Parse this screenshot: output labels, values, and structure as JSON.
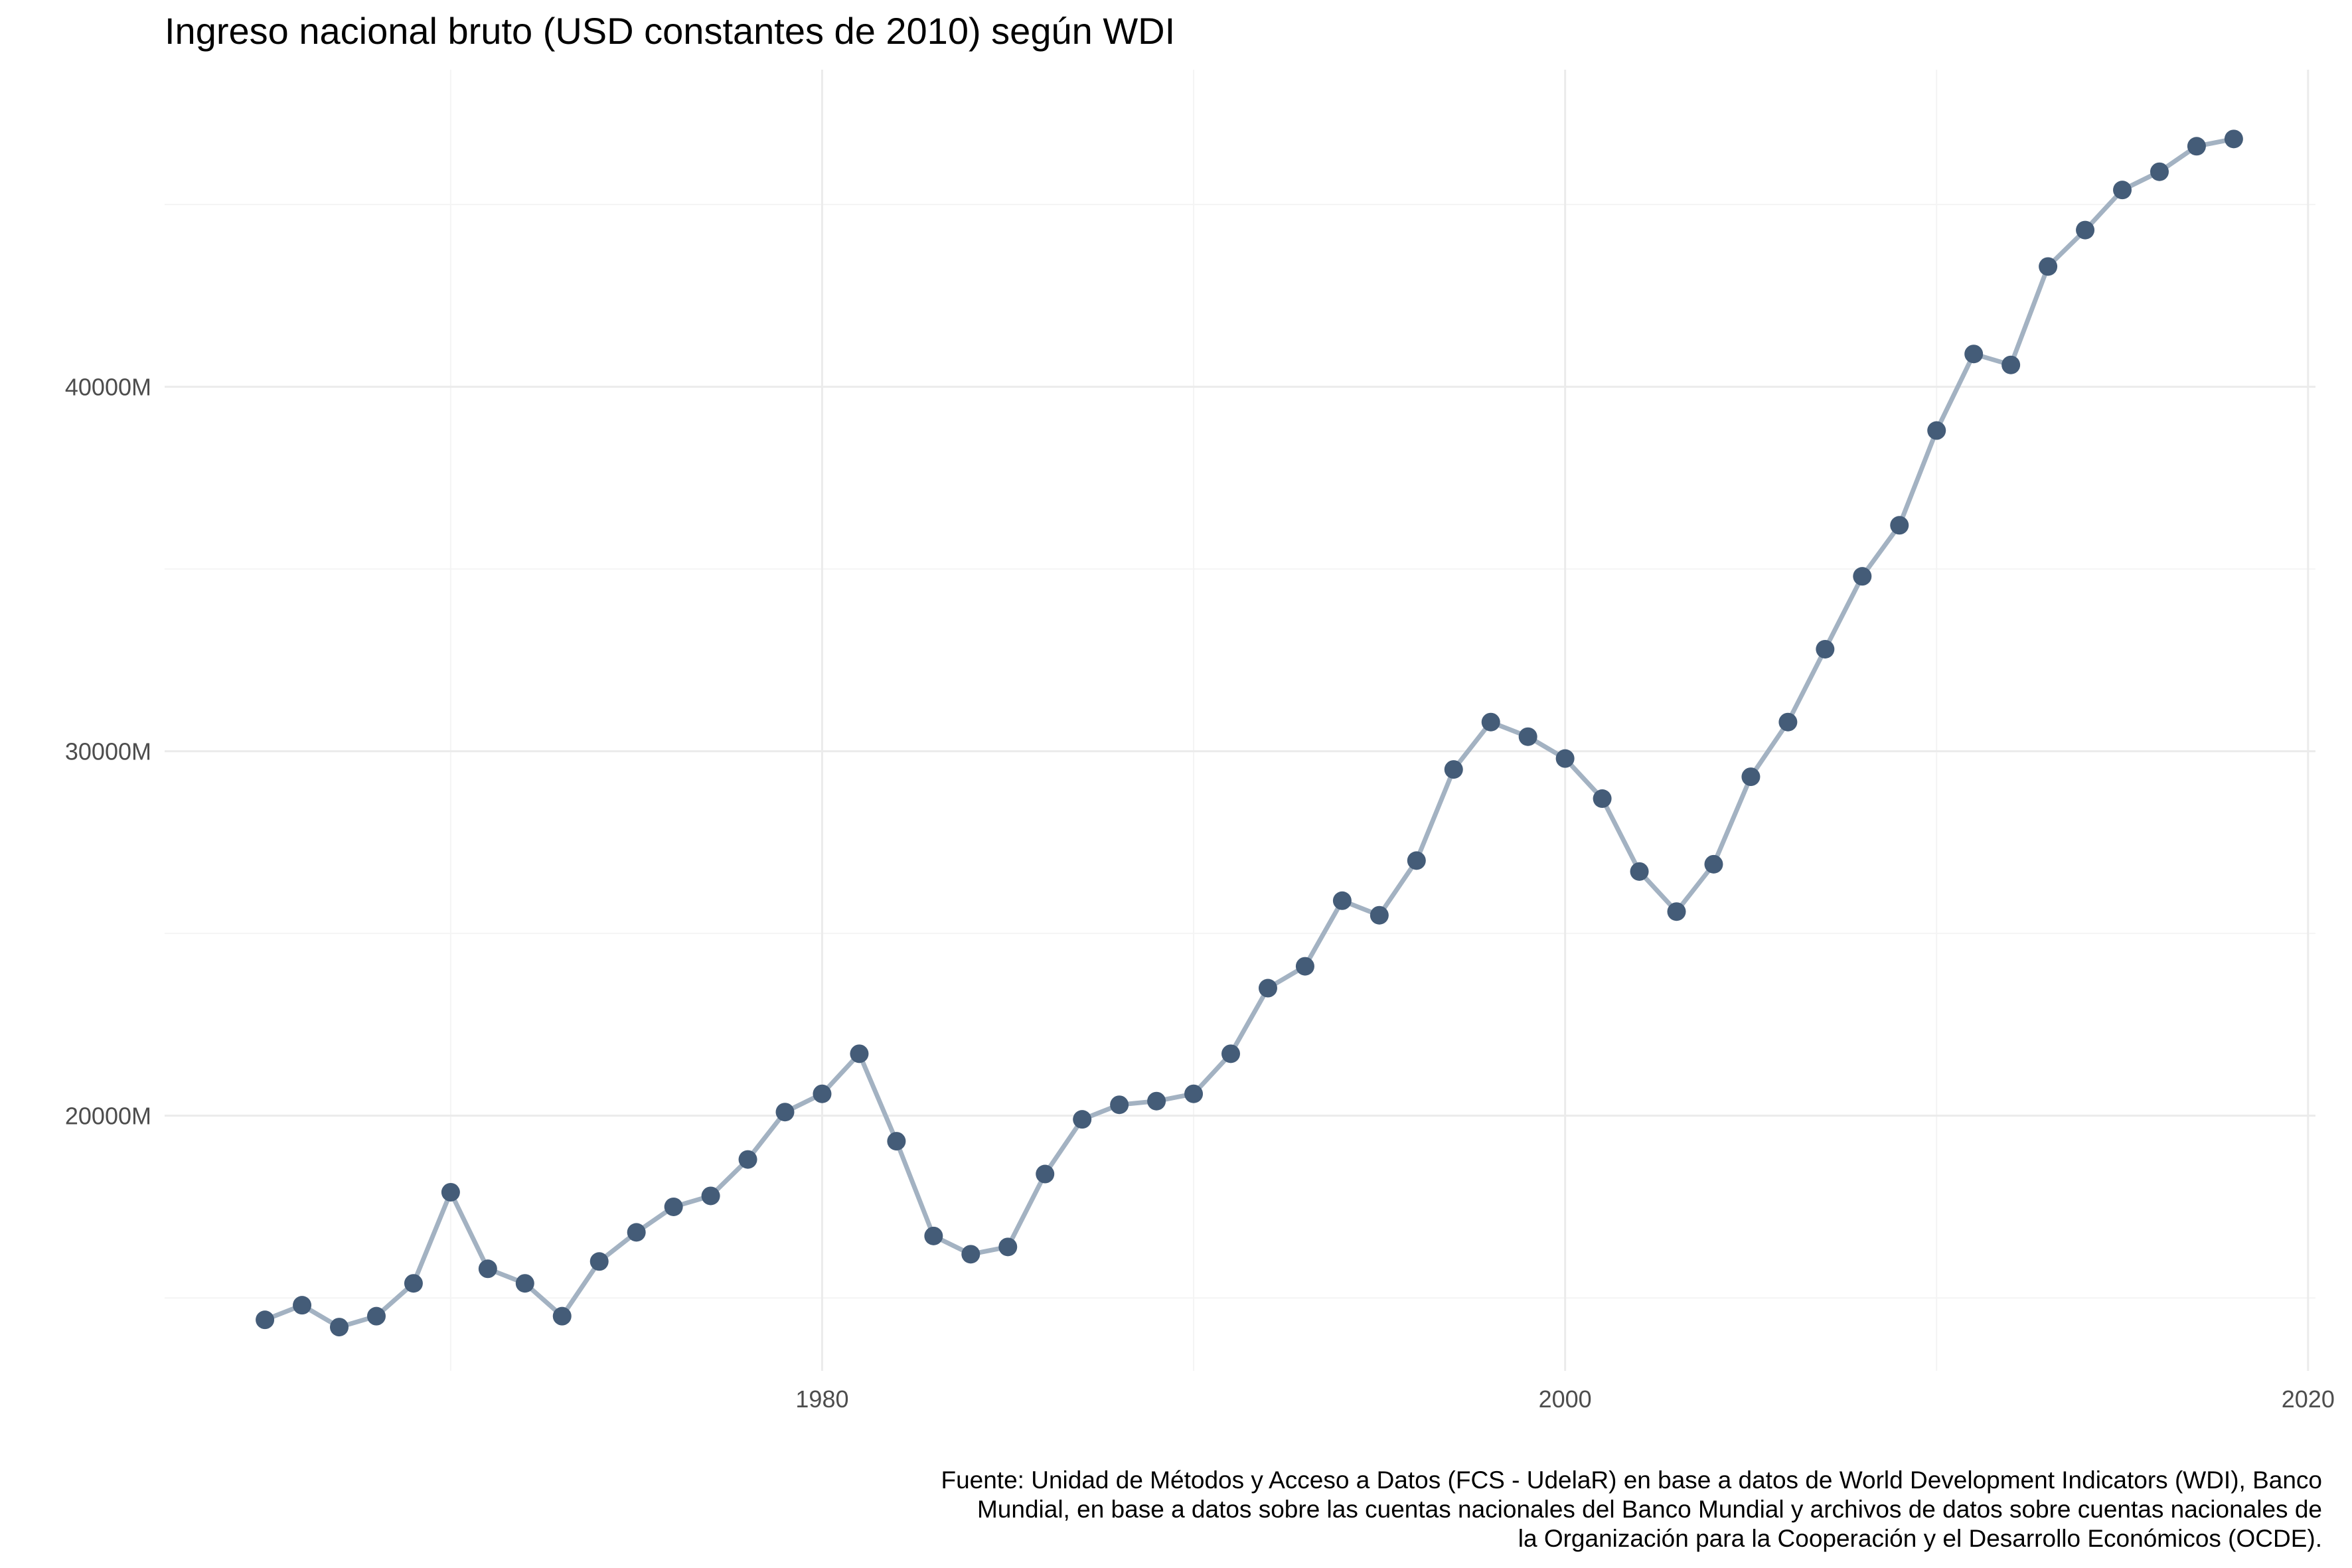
{
  "title": "Ingreso nacional bruto (USD constantes de 2010) según WDI",
  "caption_lines": [
    "Fuente: Unidad de Métodos y Acceso a Datos (FCS - UdelaR) en base a datos de World Development Indicators (WDI), Banco",
    "Mundial, en base a datos sobre las cuentas nacionales del Banco Mundial y archivos de datos sobre cuentas nacionales de",
    "la Organización para la Cooperación y el Desarrollo Económicos (OCDE)."
  ],
  "colors": {
    "line": "#a3b2c2",
    "point": "#445c78",
    "grid_major": "#ebebeb",
    "grid_minor": "#f4f4f4",
    "tick_text": "#4d4d4d"
  },
  "chart_data": {
    "type": "line",
    "title": "Ingreso nacional bruto (USD constantes de 2010) según WDI",
    "xlabel": "",
    "ylabel": "",
    "x_ticks": [
      1980,
      2000,
      2020
    ],
    "y_ticks": [
      20000,
      30000,
      40000
    ],
    "y_tick_labels": [
      "20000M",
      "30000M",
      "40000M"
    ],
    "y_unit": "millones de USD",
    "xlim": [
      1962.3,
      2020.2
    ],
    "ylim": [
      13000,
      48700
    ],
    "grid": true,
    "legend": "none",
    "series": [
      {
        "x": [
          1965,
          1966,
          1967,
          1968,
          1969,
          1970,
          1971,
          1972,
          1973,
          1974,
          1975,
          1976,
          1977,
          1978,
          1979,
          1980,
          1981,
          1982,
          1983,
          1984,
          1985,
          1986,
          1987,
          1988,
          1989,
          1990,
          1991,
          1992,
          1993,
          1994,
          1995,
          1996,
          1997,
          1998,
          1999,
          2000,
          2001,
          2002,
          2003,
          2004,
          2005,
          2006,
          2007,
          2008,
          2009,
          2010,
          2011,
          2012,
          2013,
          2014,
          2015,
          2016,
          2017,
          2018
        ],
        "values": [
          14400,
          14800,
          14200,
          14500,
          15400,
          17900,
          15800,
          15400,
          14500,
          16000,
          16800,
          17500,
          17800,
          18800,
          20100,
          20600,
          21700,
          19300,
          16700,
          16200,
          16400,
          18400,
          19900,
          20300,
          20400,
          20600,
          21700,
          23500,
          24100,
          25900,
          25500,
          27000,
          29500,
          30800,
          30400,
          29800,
          28700,
          26700,
          25600,
          26900,
          29300,
          30800,
          32800,
          34800,
          36200,
          38800,
          40900,
          40600,
          43300,
          44300,
          45400,
          45900,
          46600,
          46800
        ]
      }
    ]
  }
}
